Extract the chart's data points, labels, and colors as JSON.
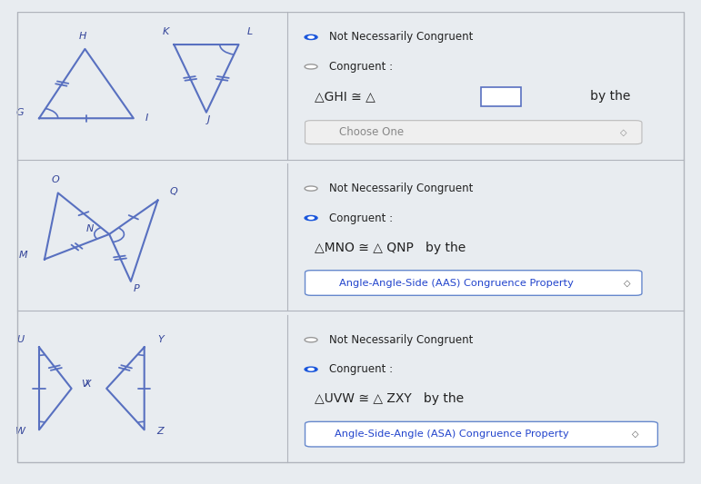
{
  "bg_color": "#e8ecf0",
  "panel_bg": "#f2f4f7",
  "panel_bg2": "#eef0f4",
  "border_color": "#c0c4cc",
  "blue": "#5870c0",
  "text_color": "#222222",
  "text_blue": "#2244cc",
  "filled_dot": "#1a56db",
  "empty_dot_color": "#999999",
  "rows": [
    {
      "selected": 0,
      "radio_texts": [
        "Not Necessarily Congruent",
        "Congruent :"
      ],
      "formula_left": "△GHI ≅ △",
      "formula_box": "□",
      "formula_right": "   by the",
      "dropdown_text": "Choose One",
      "dropdown_selected": false,
      "dropdown_color": "#aaaaaa",
      "dropdown_bg": "#f0f0f0"
    },
    {
      "selected": 1,
      "radio_texts": [
        "Not Necessarily Congruent",
        "Congruent :"
      ],
      "formula_left": "△MNO ≅ △ QNP",
      "formula_box": "",
      "formula_right": "   by the",
      "dropdown_text": "Angle-Angle-Side (AAS) Congruence Property",
      "dropdown_selected": true,
      "dropdown_color": "#2244cc",
      "dropdown_bg": "#ffffff"
    },
    {
      "selected": 1,
      "radio_texts": [
        "Not Necessarily Congruent",
        "Congruent :"
      ],
      "formula_left": "△UVW ≅ △ ZXY",
      "formula_box": "",
      "formula_right": "   by the",
      "dropdown_text": "Angle-Side-Angle (ASA) Congruence Property",
      "dropdown_selected": true,
      "dropdown_color": "#2244cc",
      "dropdown_bg": "#ffffff"
    }
  ]
}
